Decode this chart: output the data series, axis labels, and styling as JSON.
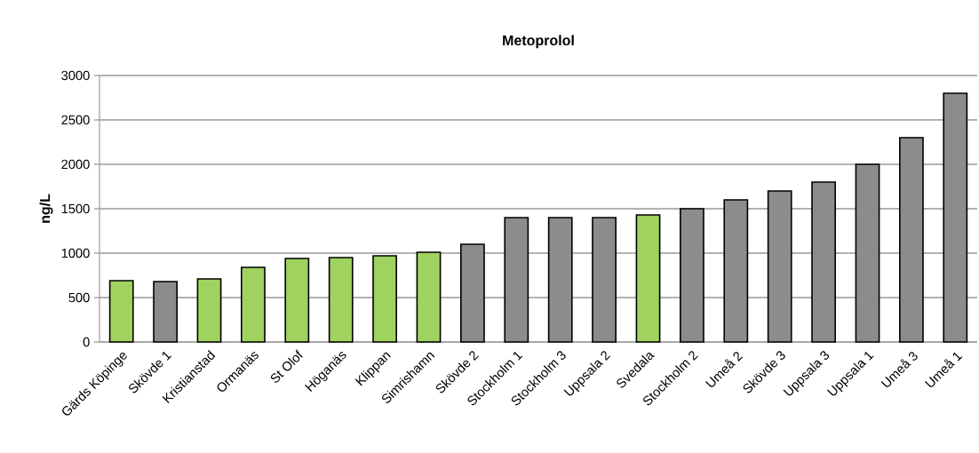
{
  "chart_data": {
    "type": "bar",
    "title": "Metoprolol",
    "ylabel": "ng/L",
    "categories": [
      "Gärds Köpinge",
      "Skövde 1",
      "Kristianstad",
      "Ormanäs",
      "St Olof",
      "Höganäs",
      "Klippan",
      "Simrishamn",
      "Skövde 2",
      "Stockholm 1",
      "Stockholm 3",
      "Uppsala 2",
      "Svedala",
      "Stockholm 2",
      "Umeå 2",
      "Skövde 3",
      "Uppsala 3",
      "Uppsala 1",
      "Umeå 3",
      "Umeå 1"
    ],
    "values": [
      690,
      680,
      710,
      840,
      940,
      950,
      970,
      1010,
      1100,
      1400,
      1400,
      1400,
      1430,
      1500,
      1600,
      1700,
      1800,
      2000,
      2300,
      2800
    ],
    "colors": [
      "#a0d25f",
      "#8c8c8c",
      "#a0d25f",
      "#a0d25f",
      "#a0d25f",
      "#a0d25f",
      "#a0d25f",
      "#a0d25f",
      "#8c8c8c",
      "#8c8c8c",
      "#8c8c8c",
      "#8c8c8c",
      "#a0d25f",
      "#8c8c8c",
      "#8c8c8c",
      "#8c8c8c",
      "#8c8c8c",
      "#8c8c8c",
      "#8c8c8c",
      "#8c8c8c"
    ],
    "ylim": [
      0,
      3000
    ],
    "yticks": [
      0,
      500,
      1000,
      1500,
      2000,
      2500,
      3000
    ],
    "grid": "y"
  }
}
